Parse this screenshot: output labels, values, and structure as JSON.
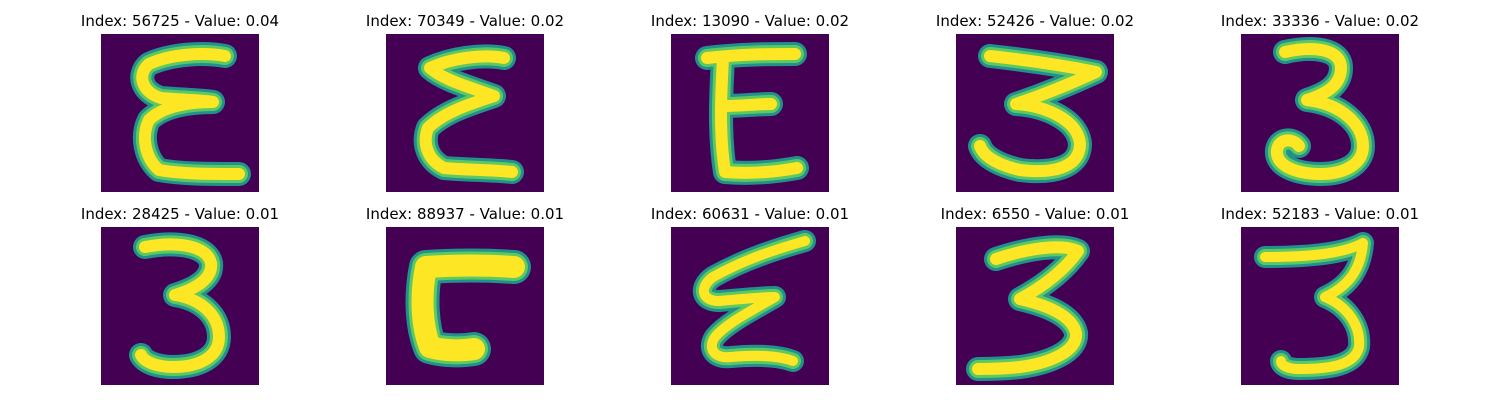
{
  "palette": {
    "background": "#440154",
    "edge": "#21918c",
    "mid": "#5ec962",
    "stroke": "#fde725"
  },
  "panels": [
    {
      "title": "Index: 56725 - Value: 0.04",
      "glyph": "epsilon"
    },
    {
      "title": "Index: 70349 - Value: 0.02",
      "glyph": "epsilon"
    },
    {
      "title": "Index: 13090 - Value: 0.02",
      "glyph": "epsilon"
    },
    {
      "title": "Index: 52426 - Value: 0.02",
      "glyph": "three"
    },
    {
      "title": "Index: 33336 - Value: 0.02",
      "glyph": "three"
    },
    {
      "title": "Index: 28425 - Value: 0.01",
      "glyph": "three"
    },
    {
      "title": "Index: 88937 - Value: 0.01",
      "glyph": "corner"
    },
    {
      "title": "Index: 60631 - Value: 0.01",
      "glyph": "epsilon"
    },
    {
      "title": "Index: 6550 - Value: 0.01",
      "glyph": "three"
    },
    {
      "title": "Index: 52183 - Value: 0.01",
      "glyph": "three"
    }
  ]
}
